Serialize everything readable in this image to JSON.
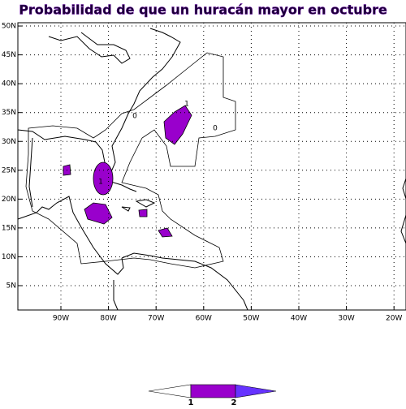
{
  "title": "Probabilidad de que un huracán mayor en octubre",
  "map": {
    "lat_labels": [
      "5N",
      "10N",
      "15N",
      "20N",
      "25N",
      "30N",
      "35N",
      "40N",
      "45N",
      "50N"
    ],
    "lon_labels": [
      "90W",
      "80W",
      "70W",
      "60W",
      "50W",
      "40W",
      "30W",
      "20W"
    ],
    "contour_labels": [
      "0",
      "1",
      "0",
      "1"
    ]
  },
  "colorbar": {
    "labels": [
      "1",
      "2"
    ]
  }
}
